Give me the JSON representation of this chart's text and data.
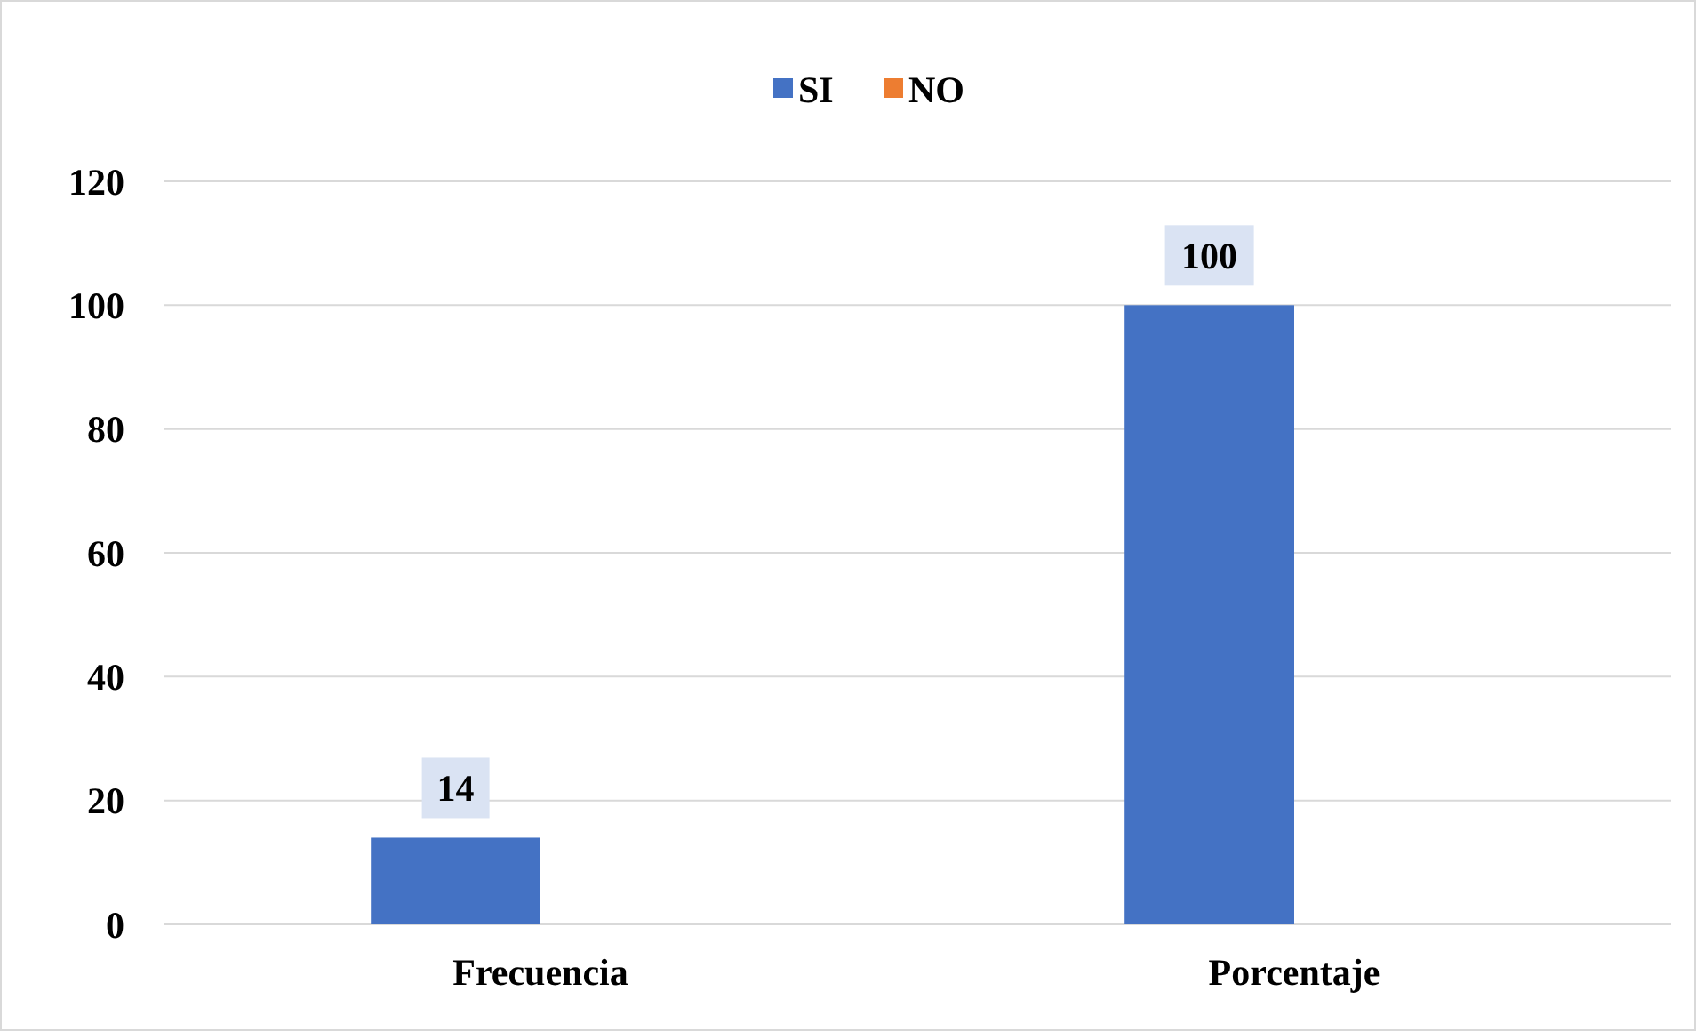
{
  "chart_data": {
    "type": "bar",
    "categories": [
      "Frecuencia",
      "Porcentaje"
    ],
    "series": [
      {
        "name": "SI",
        "color": "#4472c4",
        "values": [
          14,
          100
        ],
        "value_labels": [
          "14",
          "100"
        ]
      },
      {
        "name": "NO",
        "color": "#ed7d31",
        "values": [
          0,
          0
        ]
      }
    ],
    "ylim": [
      0,
      120
    ],
    "yticks": [
      0,
      20,
      40,
      60,
      80,
      100,
      120
    ],
    "grid": "y",
    "legend": "top"
  }
}
